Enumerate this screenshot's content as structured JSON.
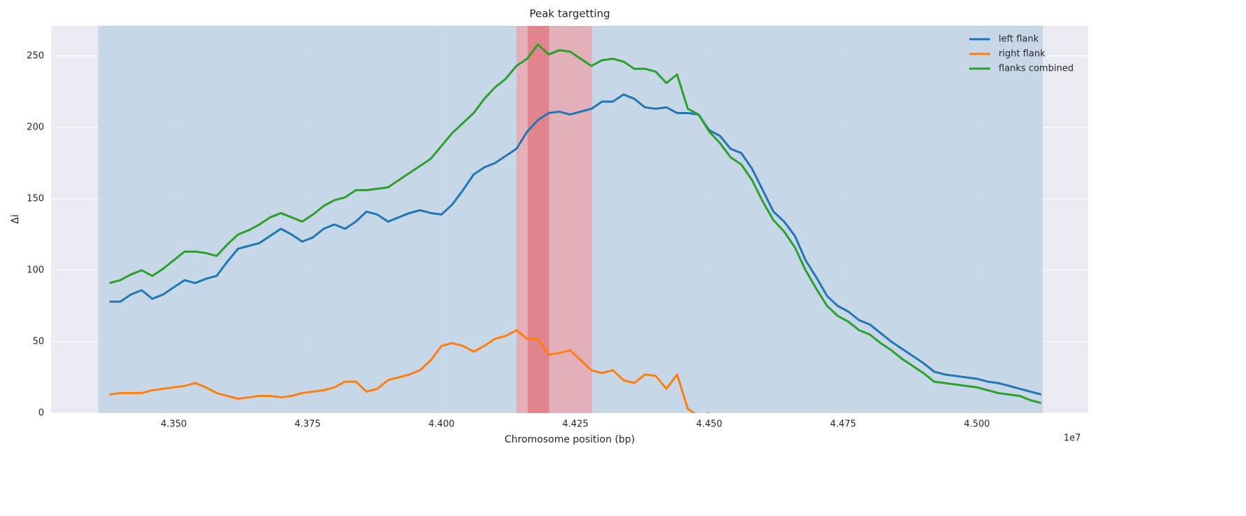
{
  "chart_data": {
    "type": "line",
    "title": "Peak targetting",
    "xlabel": "Chromosome position (bp)",
    "ylabel": "Δi",
    "x_offset_label": "1e7",
    "xlim": [
      43271000,
      45208000
    ],
    "ylim": [
      0,
      271
    ],
    "xticks": [
      {
        "value": 43500000,
        "label": "4.350"
      },
      {
        "value": 43750000,
        "label": "4.375"
      },
      {
        "value": 44000000,
        "label": "4.400"
      },
      {
        "value": 44250000,
        "label": "4.425"
      },
      {
        "value": 44500000,
        "label": "4.450"
      },
      {
        "value": 44750000,
        "label": "4.475"
      },
      {
        "value": 45000000,
        "label": "4.500"
      }
    ],
    "yticks": [
      0,
      50,
      100,
      150,
      200,
      250
    ],
    "grid": true,
    "legend": "upper right",
    "spans": [
      {
        "start": 43359000,
        "end": 45123000,
        "color": "#c1d3e6"
      },
      {
        "start": 44140000,
        "end": 44281000,
        "color": "#e8a8b0"
      },
      {
        "start": 44161000,
        "end": 44201000,
        "color": "#e07c82"
      }
    ],
    "x": [
      43380000,
      43400000,
      43420000,
      43440000,
      43460000,
      43480000,
      43500000,
      43520000,
      43540000,
      43560000,
      43580000,
      43600000,
      43620000,
      43640000,
      43660000,
      43680000,
      43700000,
      43720000,
      43740000,
      43760000,
      43780000,
      43800000,
      43820000,
      43840000,
      43860000,
      43880000,
      43900000,
      43920000,
      43940000,
      43960000,
      43980000,
      44000000,
      44020000,
      44040000,
      44060000,
      44080000,
      44100000,
      44120000,
      44140000,
      44160000,
      44180000,
      44200000,
      44220000,
      44240000,
      44260000,
      44280000,
      44300000,
      44320000,
      44340000,
      44360000,
      44380000,
      44400000,
      44420000,
      44440000,
      44460000,
      44480000,
      44500000,
      44520000,
      44540000,
      44560000,
      44580000,
      44600000,
      44620000,
      44640000,
      44660000,
      44680000,
      44700000,
      44720000,
      44740000,
      44760000,
      44780000,
      44800000,
      44820000,
      44840000,
      44860000,
      44880000,
      44900000,
      44920000,
      44940000,
      44960000,
      44980000,
      45000000,
      45020000,
      45040000,
      45060000,
      45080000,
      45100000,
      45120000
    ],
    "series": [
      {
        "name": "left flank",
        "color": "#1f77b4",
        "values": [
          78,
          78,
          83,
          86,
          80,
          83,
          88,
          93,
          91,
          94,
          96,
          106,
          115,
          117,
          119,
          124,
          129,
          125,
          120,
          123,
          129,
          132,
          129,
          134,
          141,
          139,
          134,
          137,
          140,
          142,
          140,
          139,
          146,
          156,
          167,
          172,
          175,
          180,
          185,
          197,
          205,
          210,
          211,
          209,
          211,
          213,
          218,
          218,
          223,
          220,
          214,
          213,
          214,
          210,
          210,
          209,
          198,
          194,
          185,
          182,
          171,
          156,
          141,
          134,
          124,
          107,
          95,
          82,
          75,
          71,
          65,
          62,
          56,
          50,
          45,
          40,
          35,
          29,
          27,
          26,
          25,
          24,
          22,
          21,
          19,
          17,
          15,
          13
        ]
      },
      {
        "name": "right flank",
        "color": "#ff7f0e",
        "values": [
          13,
          14,
          14,
          14,
          16,
          17,
          18,
          19,
          21,
          18,
          14,
          12,
          10,
          11,
          12,
          12,
          11,
          12,
          14,
          15,
          16,
          18,
          22,
          22,
          15,
          17,
          23,
          25,
          27,
          30,
          37,
          47,
          49,
          47,
          43,
          47,
          52,
          54,
          58,
          52,
          52,
          41,
          42,
          44,
          37,
          30,
          28,
          30,
          23,
          21,
          27,
          26,
          17,
          27,
          3,
          -2,
          0,
          null,
          null,
          null,
          null,
          null,
          null,
          null,
          null,
          null,
          null,
          null,
          null,
          null,
          null,
          null,
          null,
          null,
          null,
          null,
          null,
          null,
          null,
          null,
          null,
          null,
          null,
          null,
          null,
          null,
          null,
          null
        ]
      },
      {
        "name": "flanks combined",
        "color": "#2ca02c",
        "values": [
          91,
          93,
          97,
          100,
          96,
          101,
          107,
          113,
          113,
          112,
          110,
          118,
          125,
          128,
          132,
          137,
          140,
          137,
          134,
          139,
          145,
          149,
          151,
          156,
          156,
          157,
          158,
          163,
          168,
          173,
          178,
          187,
          196,
          203,
          210,
          220,
          228,
          234,
          243,
          248,
          258,
          251,
          254,
          253,
          248,
          243,
          247,
          248,
          246,
          241,
          241,
          239,
          231,
          237,
          213,
          209,
          197,
          189,
          179,
          174,
          163,
          148,
          135,
          127,
          116,
          100,
          87,
          75,
          68,
          64,
          58,
          55,
          49,
          44,
          38,
          33,
          28,
          22,
          21,
          20,
          19,
          18,
          16,
          14,
          13,
          12,
          9,
          7
        ]
      }
    ]
  }
}
